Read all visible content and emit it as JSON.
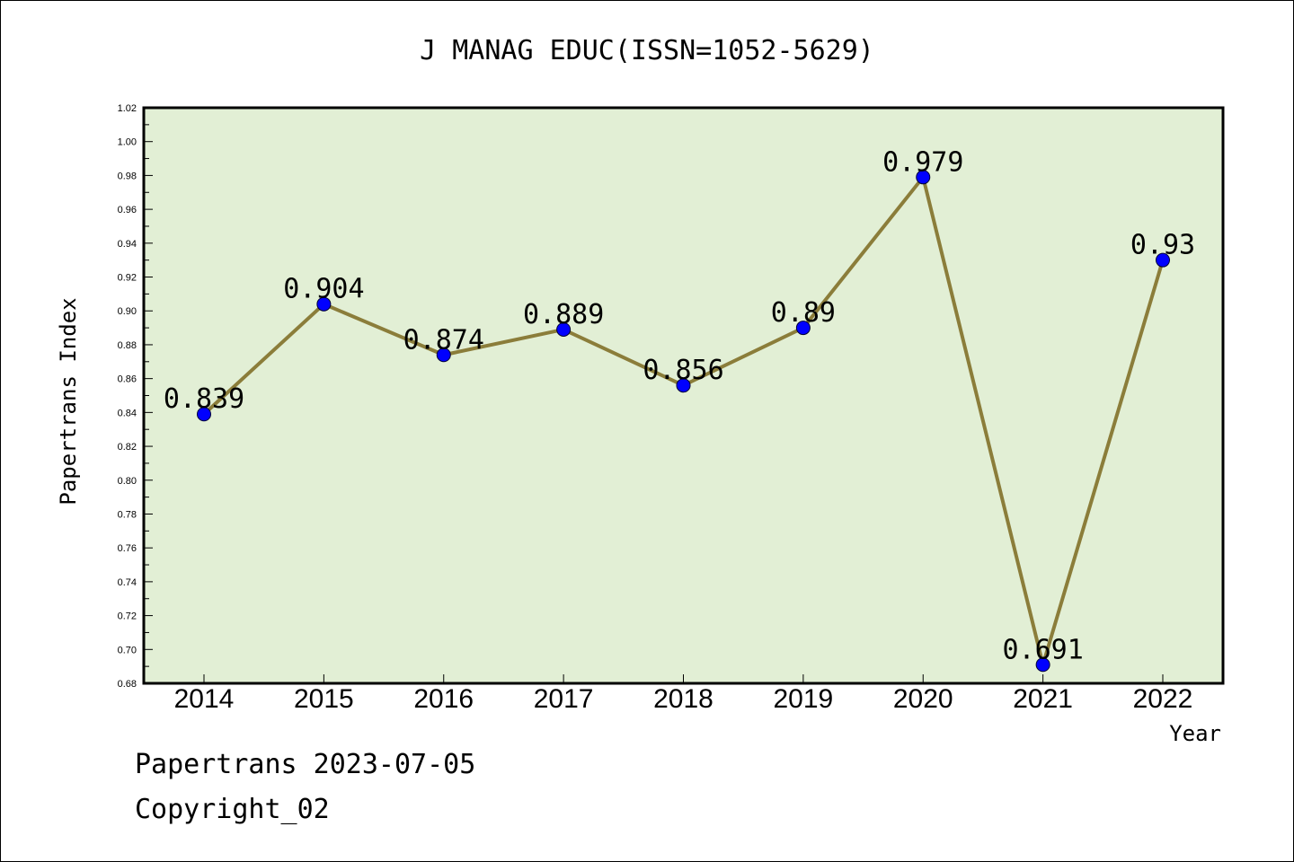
{
  "chart_data": {
    "type": "line",
    "title": "J MANAG EDUC(ISSN=1052-5629)",
    "xlabel": "Year",
    "ylabel": "Papertrans Index",
    "categories": [
      "2014",
      "2015",
      "2016",
      "2017",
      "2018",
      "2019",
      "2020",
      "2021",
      "2022"
    ],
    "series": [
      {
        "values": [
          0.839,
          0.904,
          0.874,
          0.889,
          0.856,
          0.89,
          0.979,
          0.691,
          0.93
        ]
      }
    ],
    "data_labels": [
      "0.839",
      "0.904",
      "0.874",
      "0.889",
      "0.856",
      "0.89",
      "0.979",
      "0.691",
      "0.93"
    ],
    "ylim": [
      0.68,
      1.02
    ],
    "yticks": [
      "0.68",
      "0.70",
      "0.72",
      "0.74",
      "0.76",
      "0.78",
      "0.80",
      "0.82",
      "0.84",
      "0.86",
      "0.88",
      "0.90",
      "0.92",
      "0.94",
      "0.96",
      "0.98",
      "1.00",
      "1.02"
    ],
    "grid": false,
    "colors": {
      "plot_background": "#e2efd5",
      "line": "#8b7d3a",
      "marker": "#0000ff",
      "axis": "#000000"
    }
  },
  "footer": {
    "line1": "Papertrans 2023-07-05",
    "line2": "Copyright_02"
  }
}
